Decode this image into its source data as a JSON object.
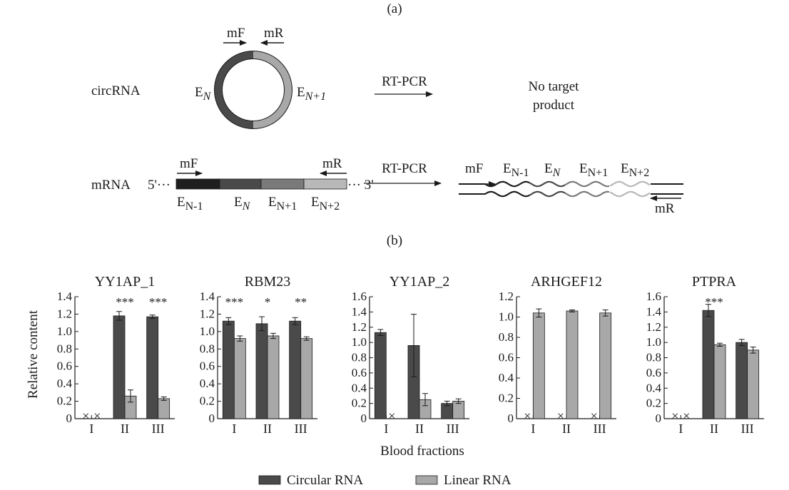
{
  "panel_a": {
    "label": "(a)",
    "circ": {
      "name": "circRNA",
      "primer_f": "mF",
      "primer_r": "mR",
      "exon_left": "E",
      "exon_left_sub": "N",
      "exon_right": "E",
      "exon_right_sub": "N+1",
      "method": "RT-PCR",
      "result_line1": "No target",
      "result_line2": "product",
      "colors": {
        "dark": "#4a4a4a",
        "light": "#a8a8a8"
      }
    },
    "mrna": {
      "name": "mRNA",
      "five_prime": "5'···",
      "three_prime": "··· 3'",
      "primer_f": "mF",
      "primer_r": "mR",
      "method": "RT-PCR",
      "exon_base": "E",
      "exons": [
        {
          "sub": "N-1",
          "color": "#1e1e1e"
        },
        {
          "sub": "N",
          "color": "#4a4a4a"
        },
        {
          "sub": "N+1",
          "color": "#7a7a7a"
        },
        {
          "sub": "N+2",
          "color": "#b8b8b8"
        }
      ],
      "product_exons": [
        "N-1",
        "N",
        "N+1",
        "N+2"
      ]
    }
  },
  "panel_b": {
    "label": "(b)"
  },
  "chart_data": [
    {
      "type": "bar",
      "title": "YY1AP_1",
      "categories": [
        "I",
        "II",
        "III"
      ],
      "ylim": [
        0,
        1.4
      ],
      "yticks": [
        "0",
        "0.2",
        "0.4",
        "0.6",
        "0.8",
        "1.0",
        "1.2",
        "1.4"
      ],
      "ylabel": "Relative content",
      "series": [
        {
          "name": "Circular RNA",
          "values": [
            0,
            1.18,
            1.17
          ],
          "errors": [
            0,
            0.05,
            0.02
          ],
          "missing": [
            true,
            false,
            false
          ]
        },
        {
          "name": "Linear RNA",
          "values": [
            0,
            0.26,
            0.23
          ],
          "errors": [
            0,
            0.07,
            0.02
          ],
          "missing": [
            true,
            false,
            false
          ]
        }
      ],
      "significance": [
        "",
        "***",
        "***"
      ]
    },
    {
      "type": "bar",
      "title": "RBM23",
      "categories": [
        "I",
        "II",
        "III"
      ],
      "ylim": [
        0,
        1.4
      ],
      "yticks": [
        "0",
        "0.2",
        "0.4",
        "0.6",
        "0.8",
        "1.0",
        "1.2",
        "1.4"
      ],
      "series": [
        {
          "name": "Circular RNA",
          "values": [
            1.12,
            1.09,
            1.12
          ],
          "errors": [
            0.04,
            0.08,
            0.04
          ],
          "missing": [
            false,
            false,
            false
          ]
        },
        {
          "name": "Linear RNA",
          "values": [
            0.92,
            0.95,
            0.92
          ],
          "errors": [
            0.03,
            0.03,
            0.02
          ],
          "missing": [
            false,
            false,
            false
          ]
        }
      ],
      "significance": [
        "***",
        "*",
        "**"
      ]
    },
    {
      "type": "bar",
      "title": "YY1AP_2",
      "categories": [
        "I",
        "II",
        "III"
      ],
      "ylim": [
        0,
        1.6
      ],
      "yticks": [
        "0",
        "0.2",
        "0.4",
        "0.6",
        "0.8",
        "1.0",
        "1.2",
        "1.4",
        "1.6"
      ],
      "series": [
        {
          "name": "Circular RNA",
          "values": [
            1.13,
            0.96,
            0.2
          ],
          "errors": [
            0.04,
            0.41,
            0.03
          ],
          "missing": [
            false,
            false,
            false
          ]
        },
        {
          "name": "Linear RNA",
          "values": [
            0,
            0.25,
            0.23
          ],
          "errors": [
            0,
            0.08,
            0.03
          ],
          "missing": [
            true,
            false,
            false
          ]
        }
      ],
      "significance": [
        "",
        "",
        ""
      ],
      "xlabel": "Blood fractions"
    },
    {
      "type": "bar",
      "title": "ARHGEF12",
      "categories": [
        "I",
        "II",
        "III"
      ],
      "ylim": [
        0,
        1.2
      ],
      "yticks": [
        "0",
        "0.2",
        "0.4",
        "0.6",
        "0.8",
        "1.0",
        "1.2"
      ],
      "series": [
        {
          "name": "Circular RNA",
          "values": [
            0,
            0,
            0
          ],
          "errors": [
            0,
            0,
            0
          ],
          "missing": [
            true,
            true,
            true
          ]
        },
        {
          "name": "Linear RNA",
          "values": [
            1.04,
            1.06,
            1.04
          ],
          "errors": [
            0.04,
            0.01,
            0.03
          ],
          "missing": [
            false,
            false,
            false
          ]
        }
      ],
      "significance": [
        "",
        "",
        ""
      ]
    },
    {
      "type": "bar",
      "title": "PTPRA",
      "categories": [
        "I",
        "II",
        "III"
      ],
      "ylim": [
        0,
        1.6
      ],
      "yticks": [
        "0",
        "0.2",
        "0.4",
        "0.6",
        "0.8",
        "1.0",
        "1.2",
        "1.4",
        "1.6"
      ],
      "series": [
        {
          "name": "Circular RNA",
          "values": [
            0,
            1.42,
            1.0
          ],
          "errors": [
            0,
            0.08,
            0.04
          ],
          "missing": [
            true,
            false,
            false
          ]
        },
        {
          "name": "Linear RNA",
          "values": [
            0,
            0.97,
            0.9
          ],
          "errors": [
            0,
            0.02,
            0.04
          ],
          "missing": [
            true,
            false,
            false
          ]
        }
      ],
      "significance": [
        "",
        "***",
        ""
      ]
    }
  ],
  "legend": {
    "placement": "bottom-center",
    "items": [
      {
        "label": "Circular RNA",
        "color": "#4a4a4a"
      },
      {
        "label": "Linear RNA",
        "color": "#a8a8a8"
      }
    ]
  },
  "colors": {
    "circular": "#4a4a4a",
    "linear": "#a8a8a8",
    "axis": "#1a1a1a"
  }
}
